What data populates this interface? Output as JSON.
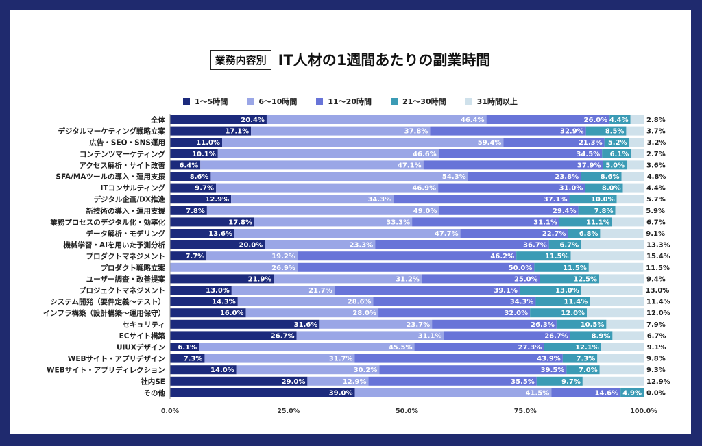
{
  "header": {
    "category_tag": "業務内容別",
    "title": "IT人材の1週間あたりの副業時間"
  },
  "colors": {
    "background": "#1f2a6e",
    "series": [
      "#1c2a7c",
      "#9aa6e6",
      "#6874d8",
      "#3b9bb5",
      "#cfe1eb"
    ]
  },
  "chart_data": {
    "type": "bar",
    "orientation": "horizontal",
    "stacked": true,
    "title": "IT人材の1週間あたりの副業時間",
    "xlim": [
      0,
      100
    ],
    "x_ticks": [
      "0.0%",
      "25.0%",
      "50.0%",
      "75.0%",
      "100.0%"
    ],
    "legend_position": "top",
    "categories": [
      "全体",
      "デジタルマーケティング戦略立案",
      "広告・SEO・SNS運用",
      "コンテンツマーケティング",
      "アクセス解析・サイト改善",
      "SFA/MAツールの導入・運用支援",
      "ITコンサルティング",
      "デジタル企画/DX推進",
      "新技術の導入・運用支援",
      "業務プロセスのデジタル化・効率化",
      "データ解析・モデリング",
      "機械学習・AIを用いた予測分析",
      "プロダクトマネジメント",
      "プロダクト戦略立案",
      "ユーザー調査・改善提案",
      "プロジェクトマネジメント",
      "システム開発（要件定義〜テスト）",
      "インフラ構築（設計構築〜運用保守）",
      "セキュリティ",
      "ECサイト構築",
      "UIUXデザイン",
      "WEBサイト・アプリデザイン",
      "WEBサイト・アプリディレクション",
      "社内SE",
      "その他"
    ],
    "series": [
      {
        "name": "1〜5時間",
        "values": [
          20.4,
          17.1,
          11.0,
          10.1,
          6.4,
          8.6,
          9.7,
          12.9,
          7.8,
          17.8,
          13.6,
          20.0,
          7.7,
          0,
          21.9,
          13.0,
          14.3,
          16.0,
          31.6,
          26.7,
          6.1,
          7.3,
          14.0,
          29.0,
          39.0
        ],
        "labels": [
          "20.4%",
          "17.1%",
          "11.0%",
          "10.1%",
          "6.4%",
          "8.6%",
          "9.7%",
          "12.9%",
          "7.8%",
          "17.8%",
          "13.6%",
          "20.0%",
          "7.7%",
          "",
          "21.9%",
          "13.0%",
          "14.3%",
          "16.0%",
          "31.6%",
          "26.7%",
          "6.1%",
          "7.3%",
          "14.0%",
          "29.0%",
          "39.0%"
        ]
      },
      {
        "name": "6〜10時間",
        "values": [
          46.4,
          37.8,
          59.4,
          46.6,
          47.1,
          54.3,
          46.9,
          34.3,
          49.0,
          33.3,
          47.7,
          23.3,
          19.2,
          26.9,
          31.2,
          21.7,
          28.6,
          28.0,
          23.7,
          31.1,
          45.5,
          31.7,
          30.2,
          12.9,
          41.5
        ],
        "labels": [
          "46.4%",
          "37.8%",
          "59.4%",
          "46.6%",
          "47.1%",
          "54.3%",
          "46.9%",
          "34.3%",
          "49.0%",
          "33.3%",
          "47.7%",
          "23.3%",
          "19.2%",
          "26.9%",
          "31.2%",
          "21.7%",
          "28.6%",
          "28.0%",
          "23.7%",
          "31.1%",
          "45.5%",
          "31.7%",
          "30.2%",
          "12.9%",
          "41.5%"
        ]
      },
      {
        "name": "11〜20時間",
        "values": [
          26.0,
          32.9,
          21.3,
          34.5,
          37.9,
          23.8,
          31.0,
          37.1,
          29.4,
          31.1,
          22.7,
          36.7,
          46.2,
          50.0,
          25.0,
          39.1,
          34.3,
          32.0,
          26.3,
          26.7,
          27.3,
          43.9,
          39.5,
          35.5,
          14.6
        ],
        "labels": [
          "26.0%",
          "32.9%",
          "21.3%",
          "34.5%",
          "37.9%",
          "23.8%",
          "31.0%",
          "37.1%",
          "29.4%",
          "31.1%",
          "22.7%",
          "36.7%",
          "46.2%",
          "50.0%",
          "25.0%",
          "39.1%",
          "34.3%",
          "32.0%",
          "26.3%",
          "26.7%",
          "27.3%",
          "43.9%",
          "39.5%",
          "35.5%",
          "14.6%"
        ]
      },
      {
        "name": "21〜30時間",
        "values": [
          4.4,
          8.5,
          5.2,
          6.1,
          5.0,
          8.6,
          8.0,
          10.0,
          7.8,
          11.1,
          6.8,
          6.7,
          11.5,
          11.5,
          12.5,
          13.0,
          11.4,
          12.0,
          10.5,
          8.9,
          12.1,
          7.3,
          7.0,
          9.7,
          4.9
        ],
        "labels": [
          "4.4%",
          "8.5%",
          "5.2%",
          "6.1%",
          "5.0%",
          "8.6%",
          "8.0%",
          "10.0%",
          "7.8%",
          "11.1%",
          "6.8%",
          "6.7%",
          "11.5%",
          "11.5%",
          "12.5%",
          "13.0%",
          "11.4%",
          "12.0%",
          "10.5%",
          "8.9%",
          "12.1%",
          "7.3%",
          "7.0%",
          "9.7%",
          "4.9%"
        ]
      },
      {
        "name": "31時間以上",
        "values": [
          2.8,
          3.7,
          3.2,
          2.7,
          3.6,
          4.8,
          4.4,
          5.7,
          5.9,
          6.7,
          9.1,
          13.3,
          15.4,
          11.5,
          9.4,
          13.0,
          11.4,
          12.0,
          7.9,
          6.7,
          9.1,
          9.8,
          9.3,
          12.9,
          0.0
        ],
        "labels": [
          "2.8%",
          "3.7%",
          "3.2%",
          "2.7%",
          "3.6%",
          "4.8%",
          "4.4%",
          "5.7%",
          "5.9%",
          "6.7%",
          "9.1%",
          "13.3%",
          "15.4%",
          "11.5%",
          "9.4%",
          "13.0%",
          "11.4%",
          "12.0%",
          "7.9%",
          "6.7%",
          "9.1%",
          "9.8%",
          "9.3%",
          "12.9%",
          "0.0%"
        ]
      }
    ]
  }
}
